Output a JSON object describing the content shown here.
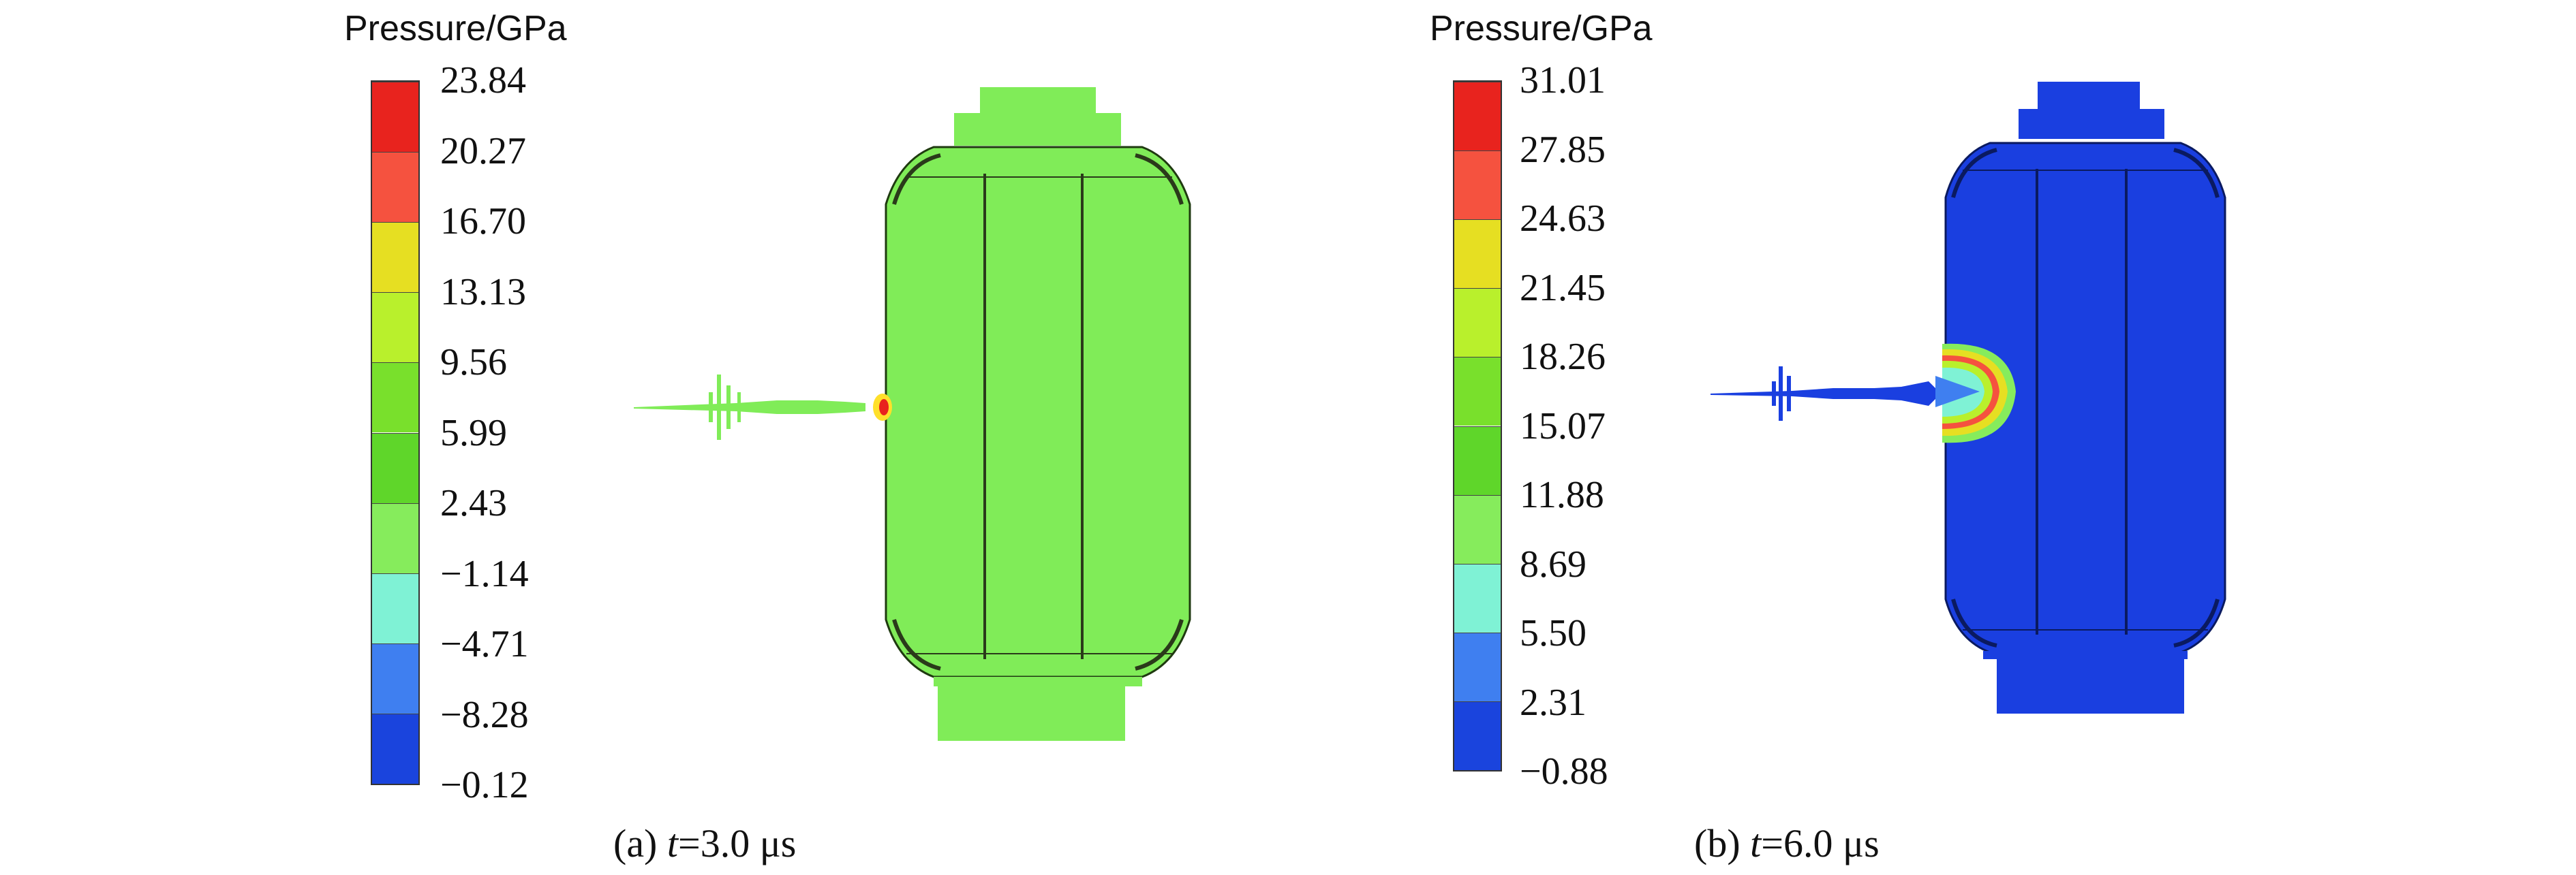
{
  "panels": [
    {
      "legend_title": "Pressure/GPa",
      "ticks": [
        "23.84",
        "20.27",
        "16.70",
        "13.13",
        "9.56",
        "5.99",
        "2.43",
        "−1.14",
        "−4.71",
        "−8.28",
        "−0.12"
      ],
      "band_colors": [
        "#e8231e",
        "#f5523f",
        "#e6df22",
        "#b9f02c",
        "#79e02c",
        "#5fd62a",
        "#86ec5c",
        "#7ff2d5",
        "#3f7ff0",
        "#1a44dd"
      ],
      "caption_prefix": "(a) ",
      "caption_var": "t",
      "caption_value": "=3.0 μs",
      "body_color": "#80ec58",
      "impact": "small red spot at projectile tip"
    },
    {
      "legend_title": "Pressure/GPa",
      "ticks": [
        "31.01",
        "27.85",
        "24.63",
        "21.45",
        "18.26",
        "15.07",
        "11.88",
        "8.69",
        "5.50",
        "2.31",
        "−0.88"
      ],
      "band_colors": [
        "#e8231e",
        "#f5523f",
        "#e6df22",
        "#b9f02c",
        "#79e02c",
        "#5fd62a",
        "#86ec5c",
        "#7ff2d5",
        "#3f7ff0",
        "#1a44dd"
      ],
      "caption_prefix": "(b) ",
      "caption_var": "t",
      "caption_value": "=6.0 μs",
      "body_color": "#1a3fe0",
      "impact": "expanding pressure wave front"
    }
  ]
}
